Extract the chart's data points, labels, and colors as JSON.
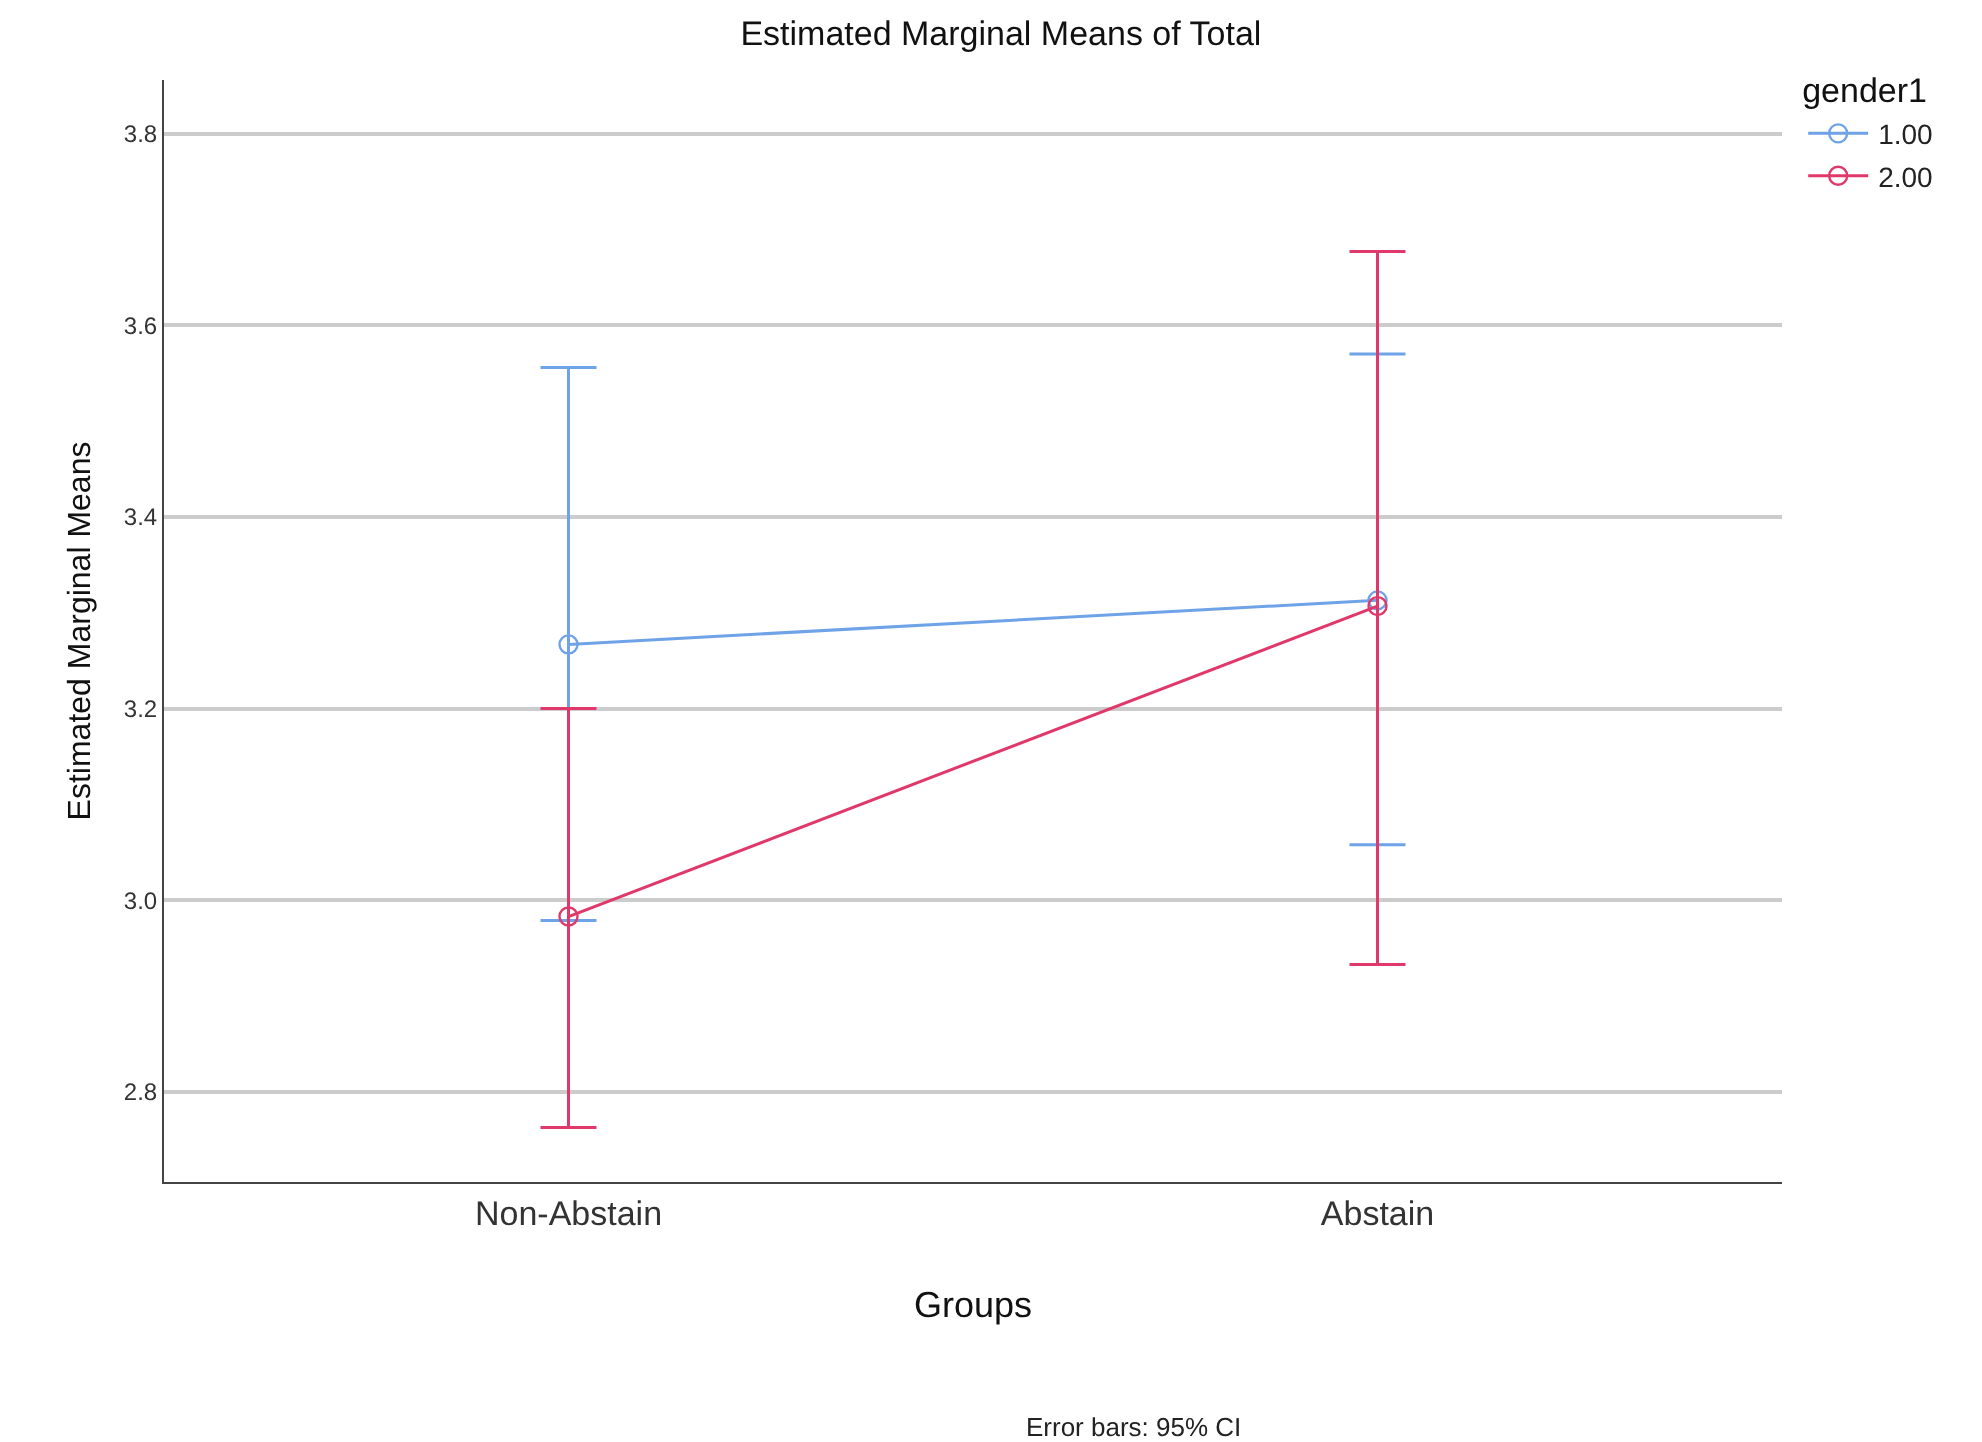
{
  "chart_data": {
    "type": "line",
    "title": "Estimated Marginal Means of Total",
    "xlabel": "Groups",
    "ylabel": "Estimated Marginal Means",
    "legend_title": "gender1",
    "categories": [
      "Non-Abstain",
      "Abstain"
    ],
    "series": [
      {
        "name": "1.00",
        "color": "#6fa3e8",
        "values": [
          3.267,
          3.313
        ],
        "errors": [
          [
            2.979,
            3.556
          ],
          [
            3.058,
            3.57
          ]
        ]
      },
      {
        "name": "2.00",
        "color": "#e0386a",
        "values": [
          2.983,
          3.307
        ],
        "errors": [
          [
            2.763,
            3.2
          ],
          [
            2.933,
            3.677
          ]
        ]
      }
    ],
    "ylim": [
      2.706,
      3.856
    ],
    "yticks": [
      {
        "value": 2.8,
        "label": "2.8"
      },
      {
        "value": 3.0,
        "label": "3.0"
      },
      {
        "value": 3.2,
        "label": "3.2"
      },
      {
        "value": 3.4,
        "label": "3.4"
      },
      {
        "value": 3.6,
        "label": "3.6"
      },
      {
        "value": 3.8,
        "label": "3.8"
      }
    ],
    "grid": "y",
    "legend": "top right",
    "marker": "circle",
    "line_style": "solid",
    "annotations": [
      "Error bars: 95% CI"
    ]
  }
}
